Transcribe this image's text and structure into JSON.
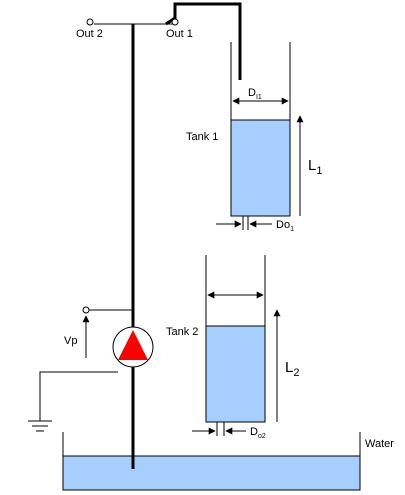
{
  "outputs": {
    "out2": "Out 2",
    "out1": "Out 1"
  },
  "tank1": {
    "label": "Tank  1",
    "inlet_diameter": {
      "main": "D",
      "sub": "I1"
    },
    "outlet_diameter": {
      "main": "Do",
      "sub": "1"
    },
    "level": {
      "main": "L",
      "sub": "1"
    }
  },
  "tank2": {
    "label": "Tank 2",
    "outlet_diameter": {
      "main": "D",
      "sub": "o2"
    },
    "level": {
      "main": "L",
      "sub": "2"
    }
  },
  "pump": {
    "voltage_label": "Vp"
  },
  "reservoir": {
    "label": "Water"
  },
  "colors": {
    "water": "#a6cfff",
    "pump": "#ff0000",
    "line": "#000000"
  }
}
